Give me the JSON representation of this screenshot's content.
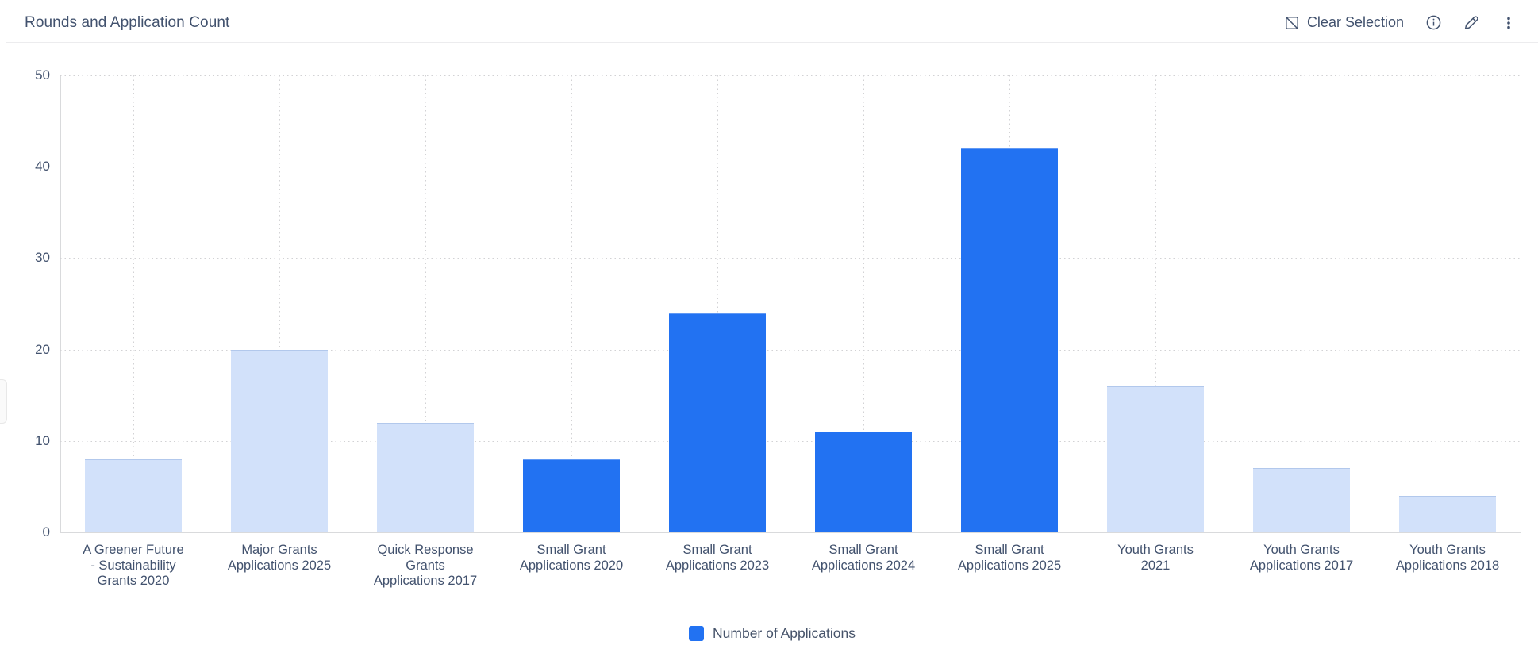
{
  "header": {
    "title": "Rounds and Application Count",
    "clear_selection_label": "Clear Selection",
    "icons": [
      "square-slash-icon",
      "info-icon",
      "pencil-icon",
      "kebab-menu-icon"
    ]
  },
  "legend": {
    "label": "Number of Applications",
    "marker_color": "#2272f2"
  },
  "colors": {
    "selected_bar": "#2272f2",
    "unselected_bar": "#d2e1fa",
    "text_slate": "#42526e"
  },
  "chart_data": {
    "type": "bar",
    "title": "Rounds and Application Count",
    "categories": [
      "A Greener Future - Sustainability Grants 2020",
      "Major Grants Applications 2025",
      "Quick Response Grants Applications 2017",
      "Small Grant Applications 2020",
      "Small Grant Applications 2023",
      "Small Grant Applications 2024",
      "Small Grant Applications 2025",
      "Youth Grants 2021",
      "Youth Grants Applications 2017",
      "Youth Grants Applications 2018"
    ],
    "category_display": [
      "A Greener Future\n- Sustainability\nGrants 2020",
      "Major Grants\nApplications 2025",
      "Quick Response\nGrants\nApplications 2017",
      "Small Grant\nApplications 2020",
      "Small Grant\nApplications 2023",
      "Small Grant\nApplications 2024",
      "Small Grant\nApplications 2025",
      "Youth Grants\n2021",
      "Youth Grants\nApplications 2017",
      "Youth Grants\nApplications 2018"
    ],
    "series": [
      {
        "name": "Number of Applications",
        "values": [
          8,
          20,
          12,
          8,
          24,
          11,
          42,
          16,
          7,
          4
        ]
      }
    ],
    "selected": [
      false,
      false,
      false,
      true,
      true,
      true,
      true,
      false,
      false,
      false
    ],
    "xlabel": "",
    "ylabel": "",
    "y_ticks": [
      0,
      10,
      20,
      30,
      40,
      50
    ],
    "ylim": [
      0,
      50
    ],
    "grid": "dotted horizontal and vertical gridlines",
    "legend_entries": [
      "Number of Applications"
    ],
    "legend_position": "bottom-center",
    "colors": {
      "selected": "#2272f2",
      "unselected": "#d2e1fa"
    }
  }
}
